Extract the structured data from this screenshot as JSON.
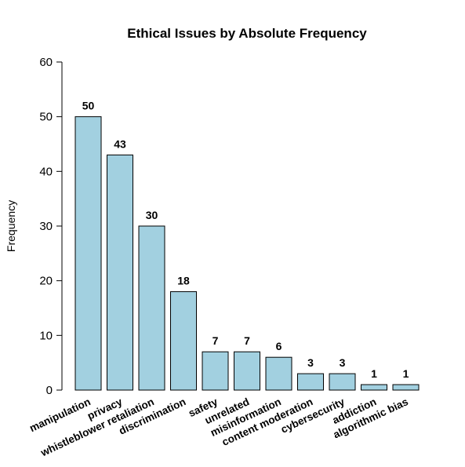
{
  "chart_data": {
    "type": "bar",
    "title": "Ethical Issues by Absolute Frequency",
    "xlabel": "",
    "ylabel": "Frequency",
    "ylim": [
      0,
      60
    ],
    "yticks": [
      0,
      10,
      20,
      30,
      40,
      50,
      60
    ],
    "categories": [
      "manipulation",
      "privacy",
      "whistleblower retaliation",
      "discrimination",
      "safety",
      "unrelated",
      "misinformation",
      "content moderation",
      "cybersecurity",
      "addiction",
      "algorithmic bias"
    ],
    "values": [
      50,
      43,
      30,
      18,
      7,
      7,
      6,
      3,
      3,
      1,
      1
    ],
    "bar_color": "#a2d0e0",
    "grid": false,
    "legend": "none"
  }
}
